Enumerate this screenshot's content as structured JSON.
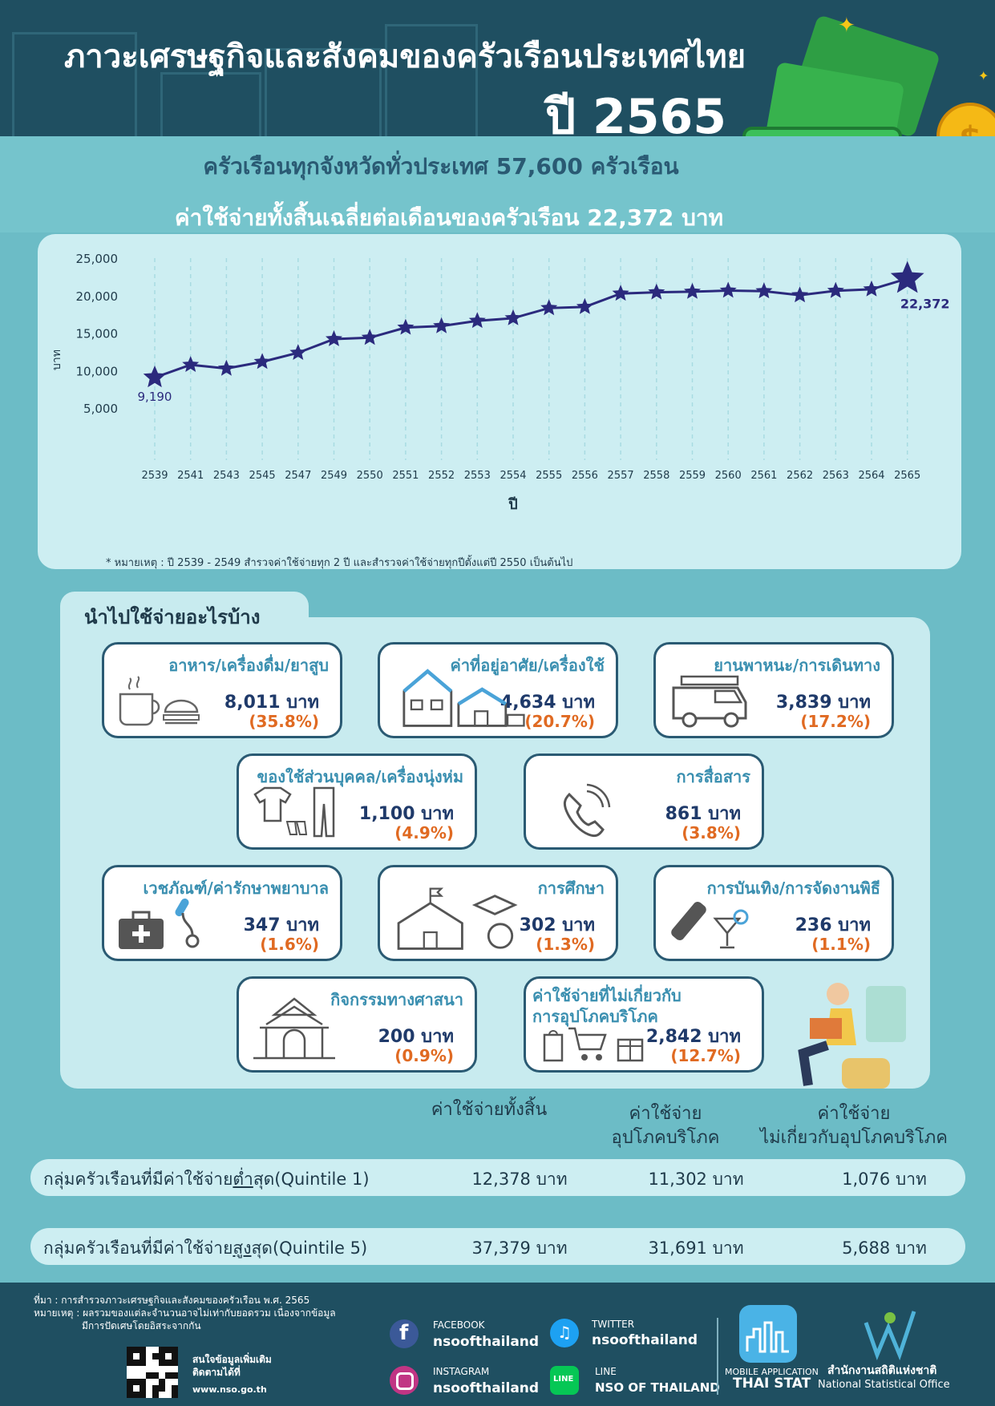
{
  "header": {
    "title": "ภาวะเศรษฐกิจและสังคมของครัวเรือนประเทศไทย",
    "year": "ปี 2565"
  },
  "summary": {
    "households": "ครัวเรือนทุกจังหวัดทั่วประเทศ 57,600 ครัวเรือน",
    "avg_expense": "ค่าใช้จ่ายทั้งสิ้นเฉลี่ยต่อเดือนของครัวเรือน 22,372 บาท"
  },
  "chart_data": {
    "type": "line",
    "x": [
      "2539",
      "2541",
      "2543",
      "2545",
      "2547",
      "2549",
      "2550",
      "2551",
      "2552",
      "2553",
      "2554",
      "2555",
      "2556",
      "2557",
      "2558",
      "2559",
      "2560",
      "2561",
      "2562",
      "2563",
      "2564",
      "2565"
    ],
    "values": [
      9190,
      10889,
      10389,
      11286,
      12492,
      14311,
      14500,
      15850,
      16050,
      16750,
      17100,
      18450,
      18600,
      20380,
      20550,
      20630,
      20780,
      20700,
      20170,
      20750,
      20950,
      22372
    ],
    "xlabel": "ปี",
    "ylabel": "บาท",
    "ylim": [
      0,
      25000
    ],
    "yticks": [
      "5,000",
      "10,000",
      "15,000",
      "20,000",
      "25,000"
    ],
    "data_labels": {
      "first": "9,190",
      "last": "22,372"
    },
    "grid": "vertical dashed",
    "marker": "star",
    "note": "* หมายเหตุ : ปี 2539 - 2549 สำรวจค่าใช้จ่ายทุก 2 ปี และสำรวจค่าใช้จ่ายทุกปีตั้งแต่ปี 2550 เป็นต้นไป"
  },
  "categories_heading": "นำไปใช้จ่ายอะไรบ้าง",
  "categories": [
    {
      "name": "อาหาร/เครื่องดื่ม/ยาสูบ",
      "amount": "8,011 บาท",
      "pct": "(35.8%)"
    },
    {
      "name": "ค่าที่อยู่อาศัย/เครื่องใช้",
      "amount": "4,634 บาท",
      "pct": "(20.7%)"
    },
    {
      "name": "ยานพาหนะ/การเดินทาง",
      "amount": "3,839 บาท",
      "pct": "(17.2%)"
    },
    {
      "name": "ของใช้ส่วนบุคคล/เครื่องนุ่งห่ม",
      "amount": "1,100 บาท",
      "pct": "(4.9%)"
    },
    {
      "name": "การสื่อสาร",
      "amount": "861 บาท",
      "pct": "(3.8%)"
    },
    {
      "name": "เวชภัณฑ์/ค่ารักษาพยาบาล",
      "amount": "347 บาท",
      "pct": "(1.6%)"
    },
    {
      "name": "การศึกษา",
      "amount": "302 บาท",
      "pct": "(1.3%)"
    },
    {
      "name": "การบันเทิง/การจัดงานพิธี",
      "amount": "236 บาท",
      "pct": "(1.1%)"
    },
    {
      "name": "กิจกรรมทางศาสนา",
      "amount": "200 บาท",
      "pct": "(0.9%)"
    },
    {
      "name_line1": "ค่าใช้จ่ายที่ไม่เกี่ยวกับ",
      "name_line2": "การอุปโภคบริโภค",
      "amount": "2,842 บาท",
      "pct": "(12.7%)"
    }
  ],
  "quintile_table": {
    "col1": "ค่าใช้จ่ายทั้งสิ้น",
    "col2_line1": "ค่าใช้จ่าย",
    "col2_line2": "อุปโภคบริโภค",
    "col3_line1": "ค่าใช้จ่าย",
    "col3_line2": "ไม่เกี่ยวกับอุปโภคบริโภค",
    "rows": [
      {
        "label_pre": "กลุ่มครัวเรือนที่มีค่าใช้จ่าย",
        "label_em": "ต่ำ",
        "label_post": "สุด(Quintile 1)",
        "total": "12,378 บาท",
        "consumption": "11,302 บาท",
        "non_consumption": "1,076 บาท"
      },
      {
        "label_pre": "กลุ่มครัวเรือนที่มีค่าใช้จ่าย",
        "label_em": "สูง",
        "label_post": "สุด(Quintile 5)",
        "total": "37,379 บาท",
        "consumption": "31,691 บาท",
        "non_consumption": "5,688 บาท"
      }
    ]
  },
  "footer": {
    "source": "ที่มา : การสำรวจภาวะเศรษฐกิจและสังคมของครัวเรือน พ.ศ. 2565",
    "note_line1": "หมายเหตุ : ผลรวมของแต่ละจำนวนอาจไม่เท่ากับยอดรวม เนื่องจากข้อมูล",
    "note_line2": "มีการปัดเศษโดยอิสระจากกัน",
    "qr_text_line1": "สนใจข้อมูลเพิ่มเติม",
    "qr_text_line2": "ติดตามได้ที่",
    "website": "www.nso.go.th",
    "facebook_label": "FACEBOOK",
    "facebook_handle": "nsoofthailand",
    "twitter_label": "TWITTER",
    "twitter_handle": "nsoofthailand",
    "instagram_label": "INSTAGRAM",
    "instagram_handle": "nsoofthailand",
    "line_label": "LINE",
    "line_handle": "NSO OF THAILAND",
    "app_label": "MOBILE APPLICATION",
    "app_name": "THAI STAT",
    "org_thai": "สำนักงานสถิติแห่งชาติ",
    "org_en": "National Statistical Office",
    "colors": {
      "navy": "#1f4f61",
      "teal": "#6cbcc6",
      "orange": "#e06a22",
      "star": "#2b2a7d",
      "facebook": "#3b5998",
      "twitter": "#1da1f2",
      "line": "#06c755"
    }
  }
}
